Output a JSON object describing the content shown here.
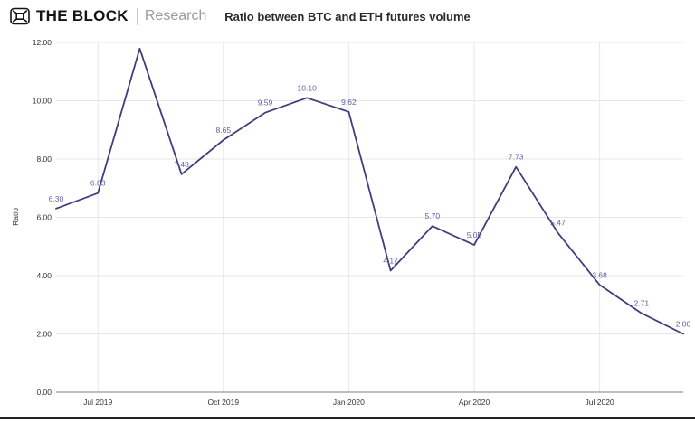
{
  "header": {
    "brand": "THE BLOCK",
    "brand_sub": "Research",
    "logo_icon": "block-cube-icon"
  },
  "title": "Ratio between BTC and ETH futures volume",
  "chart_data": {
    "type": "line",
    "title": "Ratio between BTC and ETH futures volume",
    "xlabel": "",
    "ylabel": "Ratio",
    "x": [
      "Jun 2019",
      "Jul 2019",
      "Aug 2019",
      "Sep 2019",
      "Oct 2019",
      "Nov 2019",
      "Dec 2019",
      "Jan 2020",
      "Feb 2020",
      "Mar 2020",
      "Apr 2020",
      "May 2020",
      "Jun 2020",
      "Jul 2020",
      "Aug 2020",
      "Sep 2020"
    ],
    "values": [
      6.3,
      6.83,
      11.79,
      7.48,
      8.65,
      9.59,
      10.1,
      9.62,
      4.17,
      5.7,
      5.05,
      7.73,
      5.47,
      3.68,
      2.71,
      2.0
    ],
    "point_labels": [
      "6.30",
      "6.83",
      "",
      "7.48",
      "8.65",
      "9.59",
      "10.10",
      "9.62",
      "4.17",
      "5.70",
      "5.05",
      "7.73",
      "5.47",
      "3.68",
      "2.71",
      "2.00"
    ],
    "x_tick_indices": [
      1,
      4,
      7,
      10,
      13
    ],
    "x_tick_labels": [
      "Jul 2019",
      "Oct 2019",
      "Jan 2020",
      "Apr 2020",
      "Jul 2020"
    ],
    "y_ticks": [
      0,
      2,
      4,
      6,
      8,
      10,
      12
    ],
    "y_tick_labels": [
      "0.00",
      "2.00",
      "4.00",
      "6.00",
      "8.00",
      "10.00",
      "12.00"
    ],
    "ylim": [
      0,
      12
    ],
    "grid": true,
    "legend": false,
    "colors": {
      "line": "#3f3f7d",
      "point_labels": "#5e5ea8",
      "axis_text": "#333333",
      "gridline": "#e7e7e7",
      "axis_line": "#999999"
    }
  }
}
